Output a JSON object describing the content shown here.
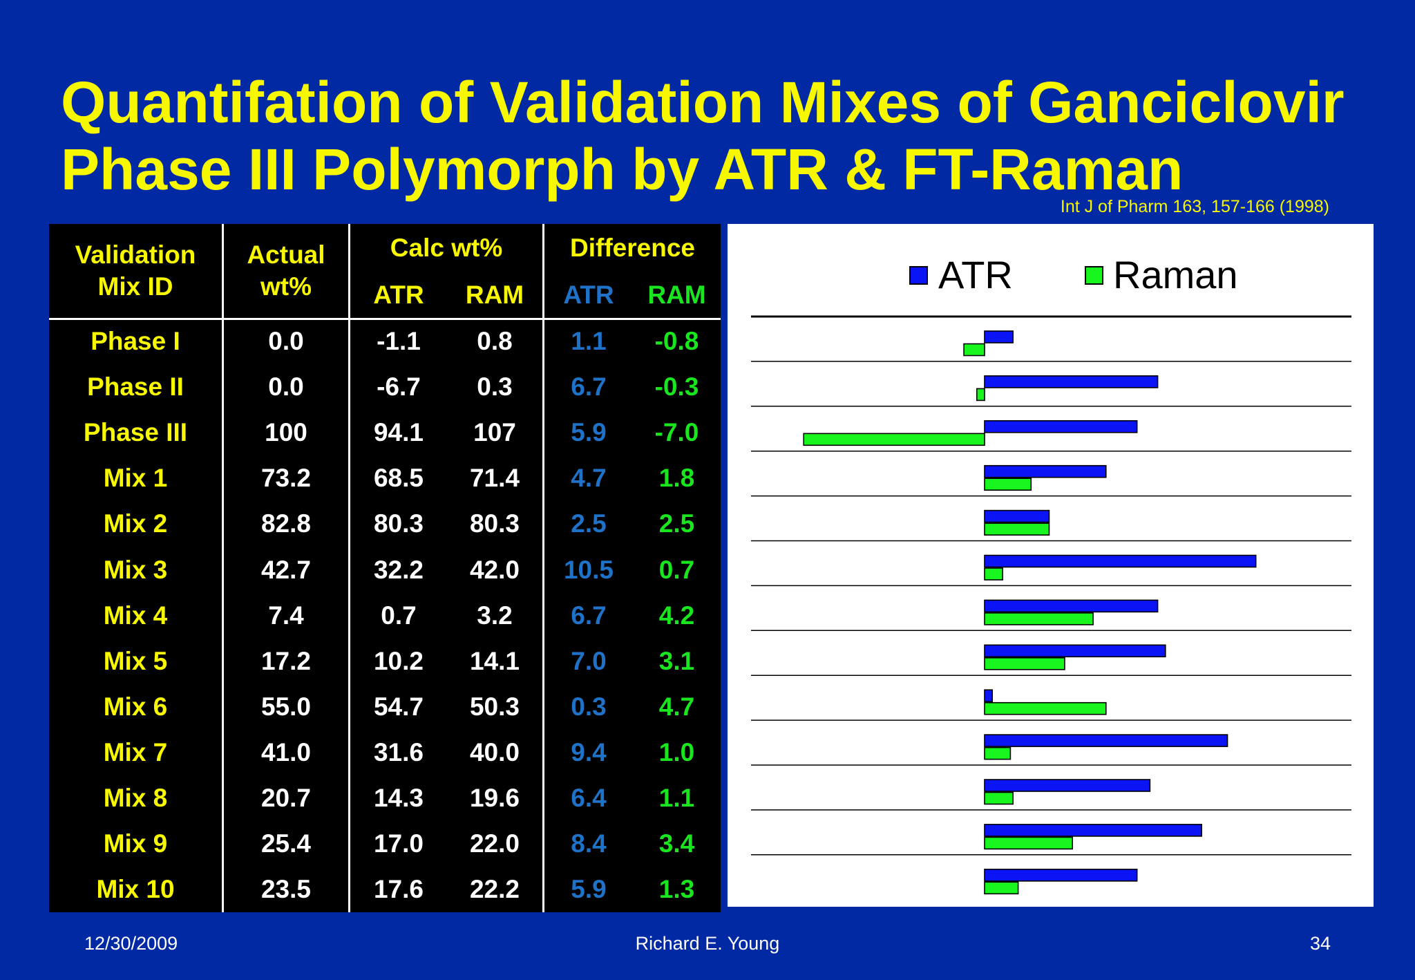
{
  "title_line1": "Quantifation of Validation Mixes of Ganciclovir",
  "title_line2": "Phase III Polymorph by ATR & FT-Raman",
  "citation": "Int J of Pharm 163, 157-166 (1998)",
  "table": {
    "headers": {
      "mix_id": [
        "Validation",
        "Mix ID"
      ],
      "actual": [
        "Actual",
        "wt%"
      ],
      "calc": "Calc wt%",
      "calc_atr": "ATR",
      "calc_ram": "RAM",
      "diff": "Difference",
      "diff_atr": "ATR",
      "diff_ram": "RAM"
    },
    "rows": [
      {
        "id": "Phase I",
        "actual": "0.0",
        "calc_atr": "-1.1",
        "calc_ram": "0.8",
        "diff_atr": "1.1",
        "diff_ram": "-0.8"
      },
      {
        "id": "Phase II",
        "actual": "0.0",
        "calc_atr": "-6.7",
        "calc_ram": "0.3",
        "diff_atr": "6.7",
        "diff_ram": "-0.3"
      },
      {
        "id": "Phase III",
        "actual": "100",
        "calc_atr": "94.1",
        "calc_ram": "107",
        "diff_atr": "5.9",
        "diff_ram": "-7.0"
      },
      {
        "id": "Mix 1",
        "actual": "73.2",
        "calc_atr": "68.5",
        "calc_ram": "71.4",
        "diff_atr": "4.7",
        "diff_ram": "1.8"
      },
      {
        "id": "Mix 2",
        "actual": "82.8",
        "calc_atr": "80.3",
        "calc_ram": "80.3",
        "diff_atr": "2.5",
        "diff_ram": "2.5"
      },
      {
        "id": "Mix 3",
        "actual": "42.7",
        "calc_atr": "32.2",
        "calc_ram": "42.0",
        "diff_atr": "10.5",
        "diff_ram": "0.7"
      },
      {
        "id": "Mix 4",
        "actual": "7.4",
        "calc_atr": "0.7",
        "calc_ram": "3.2",
        "diff_atr": "6.7",
        "diff_ram": "4.2"
      },
      {
        "id": "Mix 5",
        "actual": "17.2",
        "calc_atr": "10.2",
        "calc_ram": "14.1",
        "diff_atr": "7.0",
        "diff_ram": "3.1"
      },
      {
        "id": "Mix 6",
        "actual": "55.0",
        "calc_atr": "54.7",
        "calc_ram": "50.3",
        "diff_atr": "0.3",
        "diff_ram": "4.7"
      },
      {
        "id": "Mix 7",
        "actual": "41.0",
        "calc_atr": "31.6",
        "calc_ram": "40.0",
        "diff_atr": "9.4",
        "diff_ram": "1.0"
      },
      {
        "id": "Mix 8",
        "actual": "20.7",
        "calc_atr": "14.3",
        "calc_ram": "19.6",
        "diff_atr": "6.4",
        "diff_ram": "1.1"
      },
      {
        "id": "Mix 9",
        "actual": "25.4",
        "calc_atr": "17.0",
        "calc_ram": "22.0",
        "diff_atr": "8.4",
        "diff_ram": "3.4"
      },
      {
        "id": "Mix 10",
        "actual": "23.5",
        "calc_atr": "17.6",
        "calc_ram": "22.2",
        "diff_atr": "5.9",
        "diff_ram": "1.3"
      }
    ]
  },
  "chart_data": {
    "type": "bar",
    "orientation": "horizontal",
    "title": "",
    "xlabel": "",
    "ylabel": "",
    "categories": [
      "Phase I",
      "Phase II",
      "Phase III",
      "Mix 1",
      "Mix 2",
      "Mix 3",
      "Mix 4",
      "Mix 5",
      "Mix 6",
      "Mix 7",
      "Mix 8",
      "Mix 9",
      "Mix 10"
    ],
    "series": [
      {
        "name": "ATR",
        "color": "#0A14F5",
        "values": [
          1.1,
          6.7,
          5.9,
          4.7,
          2.5,
          10.5,
          6.7,
          7.0,
          0.3,
          9.4,
          6.4,
          8.4,
          5.9
        ]
      },
      {
        "name": "Raman",
        "color": "#19F51E",
        "values": [
          -0.8,
          -0.3,
          -7.0,
          1.8,
          2.5,
          0.7,
          4.2,
          3.1,
          4.7,
          1.0,
          1.1,
          3.4,
          1.3
        ]
      }
    ],
    "xlim": [
      -10,
      14
    ],
    "legend": "top",
    "grid": "horizontal separators"
  },
  "footer": {
    "date": "12/30/2009",
    "author": "Richard E. Young",
    "page": "34"
  }
}
